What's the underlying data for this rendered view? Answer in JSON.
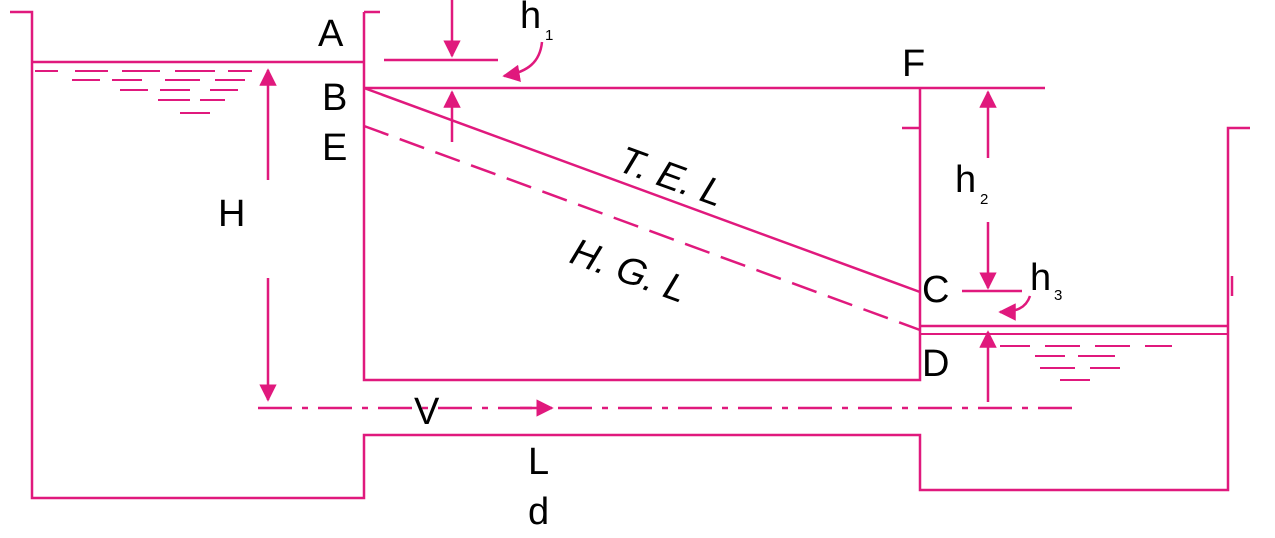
{
  "colors": {
    "line": "#e0197d",
    "text": "#000000",
    "background": "#ffffff"
  },
  "labels": {
    "A": "A",
    "B": "B",
    "C": "C",
    "D": "D",
    "E": "E",
    "F": "F",
    "H": "H",
    "h1": "h",
    "h1_sub": "1",
    "h2": "h",
    "h2_sub": "2",
    "h3": "h",
    "h3_sub": "3",
    "tel": "T. E. L",
    "hgl": "H. G. L",
    "V": "V",
    "L": "L",
    "d": "d"
  }
}
